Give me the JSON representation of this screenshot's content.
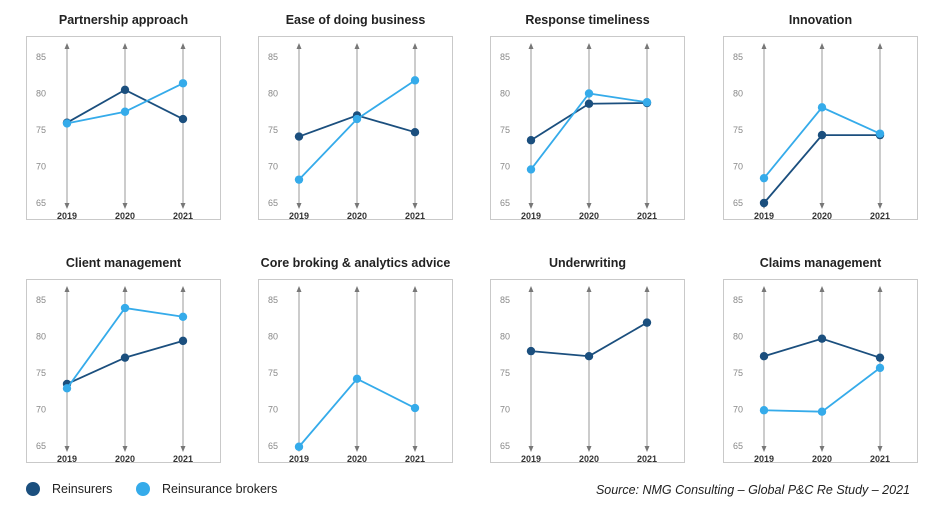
{
  "colors": {
    "reinsurers": "#1b4f7e",
    "brokers": "#35abea",
    "axis": "#9a9a9a",
    "tick": "#888888"
  },
  "legend": {
    "reinsurers": "Reinsurers",
    "brokers": "Reinsurance brokers"
  },
  "source": "Source: NMG Consulting – Global P&C Re Study – 2021",
  "chart_data": [
    {
      "type": "line",
      "title": "Partnership approach",
      "categories": [
        "2019",
        "2020",
        "2021"
      ],
      "yticks": [
        65,
        70,
        75,
        80,
        85
      ],
      "ylim": [
        65,
        85
      ],
      "series": [
        {
          "name": "Reinsurers",
          "values": [
            76.0,
            80.5,
            76.5
          ]
        },
        {
          "name": "Reinsurance brokers",
          "values": [
            75.9,
            77.5,
            81.4
          ]
        }
      ]
    },
    {
      "type": "line",
      "title": "Ease of doing business",
      "categories": [
        "2019",
        "2020",
        "2021"
      ],
      "yticks": [
        65,
        70,
        75,
        80,
        85
      ],
      "ylim": [
        65,
        85
      ],
      "series": [
        {
          "name": "Reinsurers",
          "values": [
            74.1,
            77.0,
            74.7
          ]
        },
        {
          "name": "Reinsurance brokers",
          "values": [
            68.2,
            76.5,
            81.8
          ]
        }
      ]
    },
    {
      "type": "line",
      "title": "Response timeliness",
      "categories": [
        "2019",
        "2020",
        "2021"
      ],
      "yticks": [
        65,
        70,
        75,
        80,
        85
      ],
      "ylim": [
        65,
        85
      ],
      "series": [
        {
          "name": "Reinsurers",
          "values": [
            73.6,
            78.6,
            78.7
          ]
        },
        {
          "name": "Reinsurance brokers",
          "values": [
            69.6,
            80.0,
            78.8
          ]
        }
      ]
    },
    {
      "type": "line",
      "title": "Innovation",
      "categories": [
        "2019",
        "2020",
        "2021"
      ],
      "yticks": [
        65,
        70,
        75,
        80,
        85
      ],
      "ylim": [
        65,
        85
      ],
      "series": [
        {
          "name": "Reinsurers",
          "values": [
            65.0,
            74.3,
            74.3
          ]
        },
        {
          "name": "Reinsurance brokers",
          "values": [
            68.4,
            78.1,
            74.5
          ]
        }
      ]
    },
    {
      "type": "line",
      "title": "Client management",
      "categories": [
        "2019",
        "2020",
        "2021"
      ],
      "yticks": [
        65,
        70,
        75,
        80,
        85
      ],
      "ylim": [
        65,
        85
      ],
      "series": [
        {
          "name": "Reinsurers",
          "values": [
            73.5,
            77.1,
            79.4
          ]
        },
        {
          "name": "Reinsurance brokers",
          "values": [
            72.9,
            83.9,
            82.7
          ]
        }
      ]
    },
    {
      "type": "line",
      "title": "Core broking & analytics advice",
      "categories": [
        "2019",
        "2020",
        "2021"
      ],
      "yticks": [
        65,
        70,
        75,
        80,
        85
      ],
      "ylim": [
        65,
        85
      ],
      "series": [
        {
          "name": "Reinsurance brokers",
          "values": [
            64.9,
            74.2,
            70.2
          ]
        }
      ]
    },
    {
      "type": "line",
      "title": "Underwriting",
      "categories": [
        "2019",
        "2020",
        "2021"
      ],
      "yticks": [
        65,
        70,
        75,
        80,
        85
      ],
      "ylim": [
        65,
        85
      ],
      "series": [
        {
          "name": "Reinsurers",
          "values": [
            78.0,
            77.3,
            81.9
          ]
        }
      ]
    },
    {
      "type": "line",
      "title": "Claims management",
      "categories": [
        "2019",
        "2020",
        "2021"
      ],
      "yticks": [
        65,
        70,
        75,
        80,
        85
      ],
      "ylim": [
        65,
        85
      ],
      "series": [
        {
          "name": "Reinsurers",
          "values": [
            77.3,
            79.7,
            77.1
          ]
        },
        {
          "name": "Reinsurance brokers",
          "values": [
            69.9,
            69.7,
            75.7
          ]
        }
      ]
    }
  ]
}
